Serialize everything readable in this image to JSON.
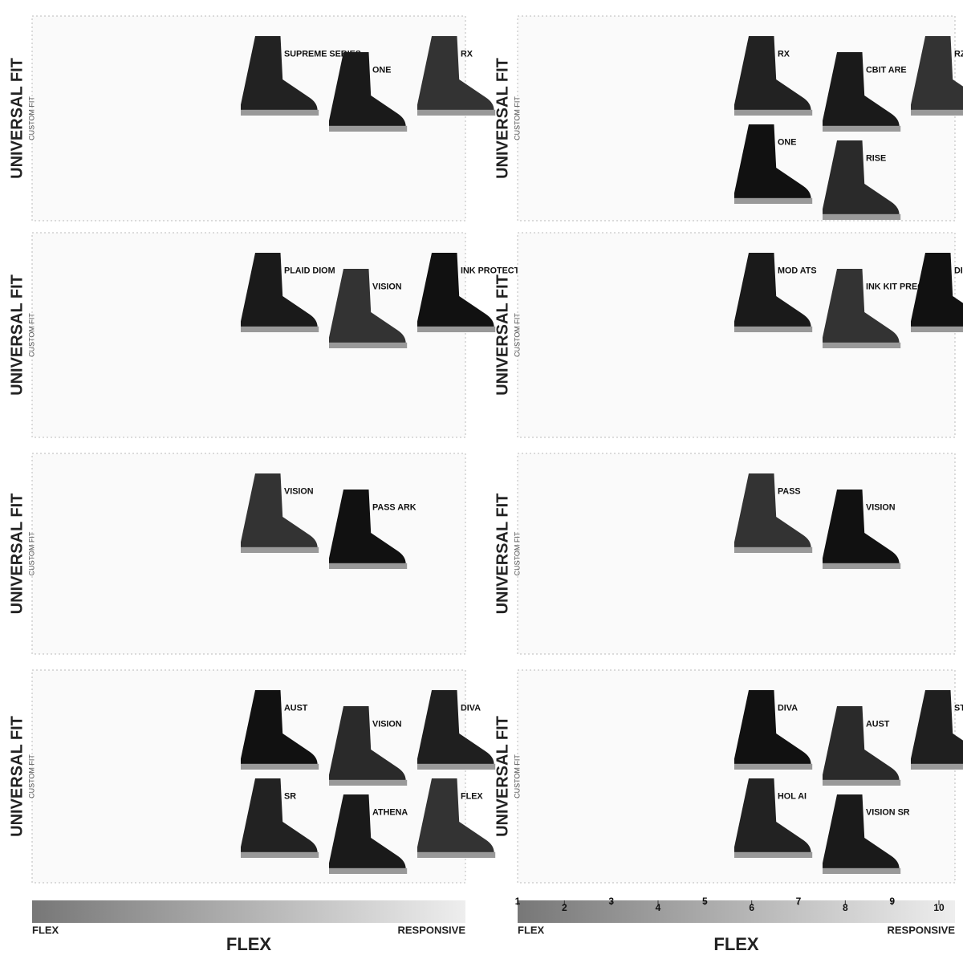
{
  "columns": [
    {
      "panels": [
        {
          "title": "UNIVERSAL FIT",
          "subtitle": "CUSTOM FIT",
          "boots": [
            "SUPREME SERIES",
            "ONE",
            "RX"
          ]
        },
        {
          "title": "UNIVERSAL FIT",
          "subtitle": "CUSTOM FIT",
          "boots": [
            "PLAID DIOM",
            "VISION",
            "INK PROTECT"
          ]
        },
        {
          "title": "UNIVERSAL FIT",
          "subtitle": "CUSTOM FIT",
          "boots": [
            "VISION",
            "PASS ARK"
          ]
        },
        {
          "title": "UNIVERSAL FIT",
          "subtitle": "CUSTOM FIT",
          "boots": [
            "AUST",
            "VISION",
            "DIVA",
            "SR",
            "ATHENA",
            "FLEX"
          ]
        }
      ],
      "scale": {
        "low": "FLEX",
        "high": "RESPONSIVE",
        "title": "FLEX"
      }
    },
    {
      "panels": [
        {
          "title": "UNIVERSAL FIT",
          "subtitle": "CUSTOM FIT",
          "boots": [
            "RX",
            "CBIT ARE",
            "RZ",
            "ONE",
            "RISE"
          ]
        },
        {
          "title": "UNIVERSAL FIT",
          "subtitle": "CUSTOM FIT",
          "boots": [
            "MOD ATS",
            "INK KIT PREC",
            "DIOM"
          ]
        },
        {
          "title": "UNIVERSAL FIT",
          "subtitle": "CUSTOM FIT",
          "boots": [
            "PASS",
            "VISION"
          ]
        },
        {
          "title": "UNIVERSAL FIT",
          "subtitle": "CUSTOM FIT",
          "boots": [
            "DIVA",
            "AUST",
            "STIT",
            "HOL AI",
            "VISION SR"
          ]
        }
      ],
      "scale": {
        "low": "FLEX",
        "high": "RESPONSIVE",
        "title": "FLEX",
        "ticks": [
          1,
          2,
          3,
          4,
          5,
          6,
          7,
          8,
          9,
          10
        ]
      }
    }
  ]
}
